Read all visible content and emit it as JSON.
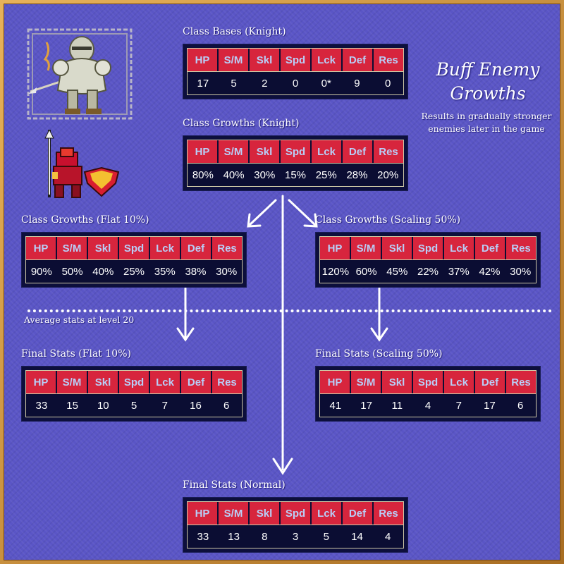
{
  "title": "Buff Enemy Growths",
  "subtitle": "Results in gradually stronger enemies later in the game",
  "divider_label": "Average stats at level 20",
  "headers": [
    "HP",
    "S/M",
    "Skl",
    "Spd",
    "Lck",
    "Def",
    "Res"
  ],
  "tables": {
    "class_bases": {
      "label": "Class Bases (Knight)",
      "values": [
        "17",
        "5",
        "2",
        "0",
        "0*",
        "9",
        "0"
      ]
    },
    "class_growths": {
      "label": "Class Growths (Knight)",
      "values": [
        "80%",
        "40%",
        "30%",
        "15%",
        "25%",
        "28%",
        "20%"
      ]
    },
    "growths_flat": {
      "label": "Class Growths (Flat 10%)",
      "values": [
        "90%",
        "50%",
        "40%",
        "25%",
        "35%",
        "38%",
        "30%"
      ]
    },
    "growths_scaling": {
      "label": "Class Growths (Scaling 50%)",
      "values": [
        "120%",
        "60%",
        "45%",
        "22%",
        "37%",
        "42%",
        "30%"
      ]
    },
    "final_flat": {
      "label": "Final Stats (Flat 10%)",
      "values": [
        "33",
        "15",
        "10",
        "5",
        "7",
        "16",
        "6"
      ]
    },
    "final_scaling": {
      "label": "Final Stats (Scaling 50%)",
      "values": [
        "41",
        "17",
        "11",
        "4",
        "7",
        "17",
        "6"
      ]
    },
    "final_normal": {
      "label": "Final Stats (Normal)",
      "values": [
        "33",
        "13",
        "8",
        "3",
        "5",
        "14",
        "4"
      ]
    }
  },
  "icons": {
    "portrait": "knight-portrait-icon",
    "sprite": "knight-map-sprite-icon"
  },
  "colors": {
    "background": "#5a55c6",
    "header": "#d7253d",
    "header_text": "#b9cef7",
    "table_bg": "#0b0d33",
    "frame": "#c58b35"
  }
}
